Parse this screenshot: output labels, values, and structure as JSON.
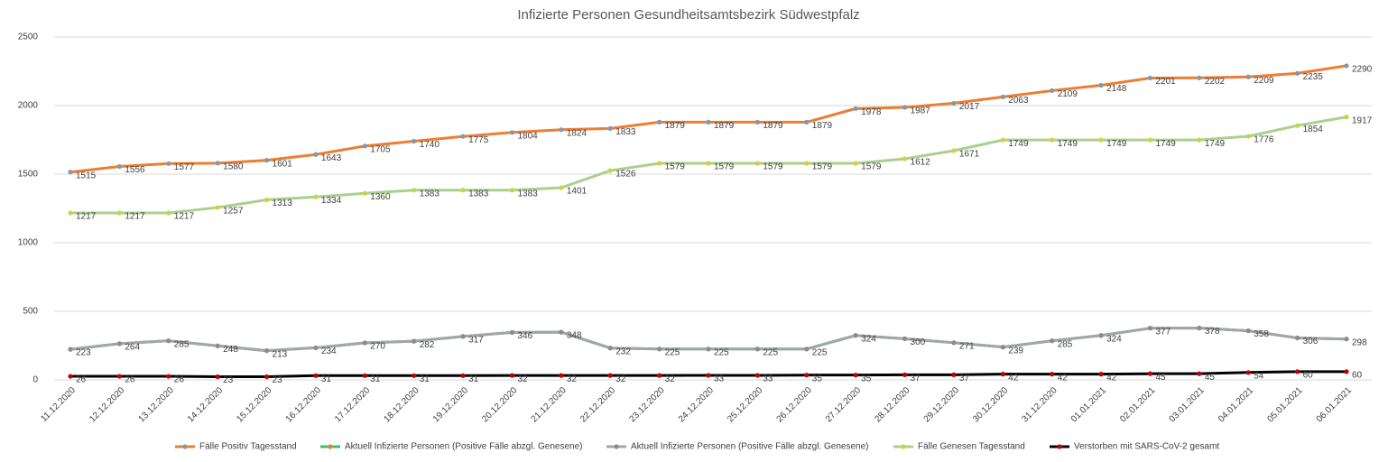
{
  "chart_data": {
    "type": "line",
    "title": "Infizierte Personen Gesundheitsamtsbezirk Südwestpfalz",
    "categories": [
      "11.12.2020",
      "12.12.2020",
      "13.12.2020",
      "14.12.2020",
      "15.12.2020",
      "16.12.2020",
      "17.12.2020",
      "18.12.2020",
      "19.12.2020",
      "20.12.2020",
      "21.12.2020",
      "22.12.2020",
      "23.12.2020",
      "24.12.2020",
      "25.12.2020",
      "26.12.2020",
      "27.12.2020",
      "28.12.2020",
      "29.12.2020",
      "30.12.2020",
      "31.12.2020",
      "01.01.2021",
      "02.01.2021",
      "03.01.2021",
      "04.01.2021",
      "05.01.2021",
      "06.01.2021"
    ],
    "ylim": [
      0,
      2500
    ],
    "yticks": [
      0,
      500,
      1000,
      1500,
      2000,
      2500
    ],
    "grid": true,
    "series": [
      {
        "name": "Fälle Positiv Tagesstand",
        "color": "#ed7d31",
        "marker_color": "#8497b0",
        "data_labels": true,
        "values": [
          1515,
          1556,
          1577,
          1580,
          1601,
          1643,
          1705,
          1740,
          1775,
          1804,
          1824,
          1833,
          1879,
          1879,
          1879,
          1879,
          1978,
          1987,
          2017,
          2063,
          2109,
          2148,
          2201,
          2202,
          2209,
          2235,
          2290
        ]
      },
      {
        "name": "Aktuell Infizierte Personen (Positive Fälle abzgl. Genesene)",
        "color": "#2fc46c",
        "marker_color": "#ed7d31",
        "data_labels": false,
        "values": [
          223,
          264,
          285,
          248,
          213,
          234,
          270,
          282,
          317,
          346,
          348,
          232,
          225,
          225,
          225,
          225,
          324,
          300,
          271,
          239,
          285,
          324,
          377,
          378,
          358,
          306,
          298
        ]
      },
      {
        "name": "Aktuell Infizierte Personen (Positive Fälle abzgl. Genesene)",
        "color": "#a5a5a5",
        "marker_color": "#8c8c8c",
        "data_labels": true,
        "values": [
          223,
          264,
          285,
          248,
          213,
          234,
          270,
          282,
          317,
          346,
          348,
          232,
          225,
          225,
          225,
          225,
          324,
          300,
          271,
          239,
          285,
          324,
          377,
          378,
          358,
          306,
          298
        ]
      },
      {
        "name": "Fälle Genesen Tagesstand",
        "color": "#a9d18e",
        "marker_color": "#c9d34a",
        "data_labels": true,
        "values": [
          1217,
          1217,
          1217,
          1257,
          1313,
          1334,
          1360,
          1383,
          1383,
          1383,
          1401,
          1526,
          1579,
          1579,
          1579,
          1579,
          1579,
          1612,
          1671,
          1749,
          1749,
          1749,
          1749,
          1749,
          1776,
          1854,
          1917
        ]
      },
      {
        "name": "Verstorben mit SARS-CoV-2 gesamt",
        "color": "#000000",
        "marker_color": "#c00000",
        "data_labels": true,
        "values": [
          26,
          26,
          26,
          23,
          23,
          31,
          31,
          31,
          31,
          32,
          32,
          32,
          32,
          33,
          33,
          35,
          35,
          37,
          37,
          42,
          42,
          42,
          45,
          45,
          54,
          60,
          60
        ]
      }
    ]
  }
}
